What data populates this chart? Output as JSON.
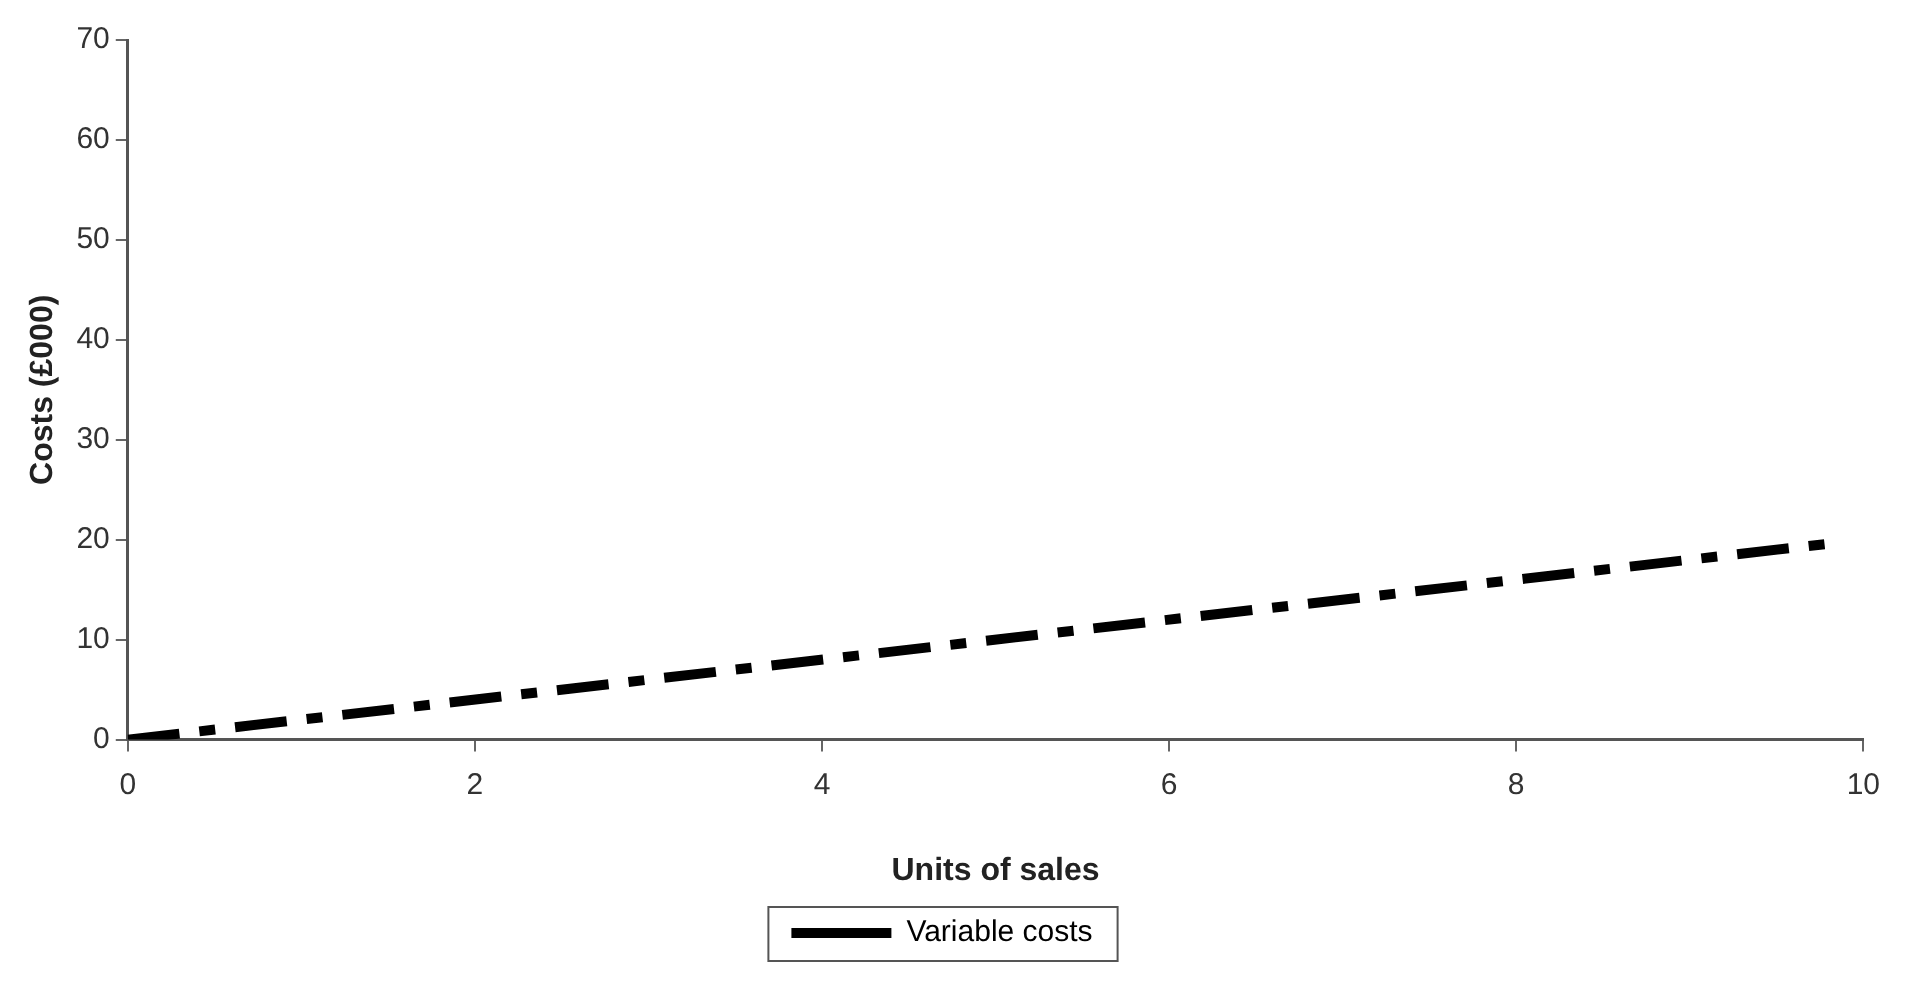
{
  "chart_data": {
    "type": "line",
    "xlabel": "Units of sales",
    "ylabel": "Costs (£000)",
    "x": [
      0,
      9.8
    ],
    "series": [
      {
        "name": "Variable costs",
        "color": "#000000",
        "values": [
          0,
          19.6
        ],
        "line_style": "dashed"
      }
    ],
    "xlim": [
      0,
      10
    ],
    "xticks": [
      0,
      2,
      4,
      6,
      8,
      10
    ],
    "ylim": [
      0,
      70
    ],
    "yticks": [
      0,
      10,
      20,
      30,
      40,
      50,
      60,
      70
    ],
    "grid": false,
    "legend": "bottom",
    "marker": "none"
  }
}
